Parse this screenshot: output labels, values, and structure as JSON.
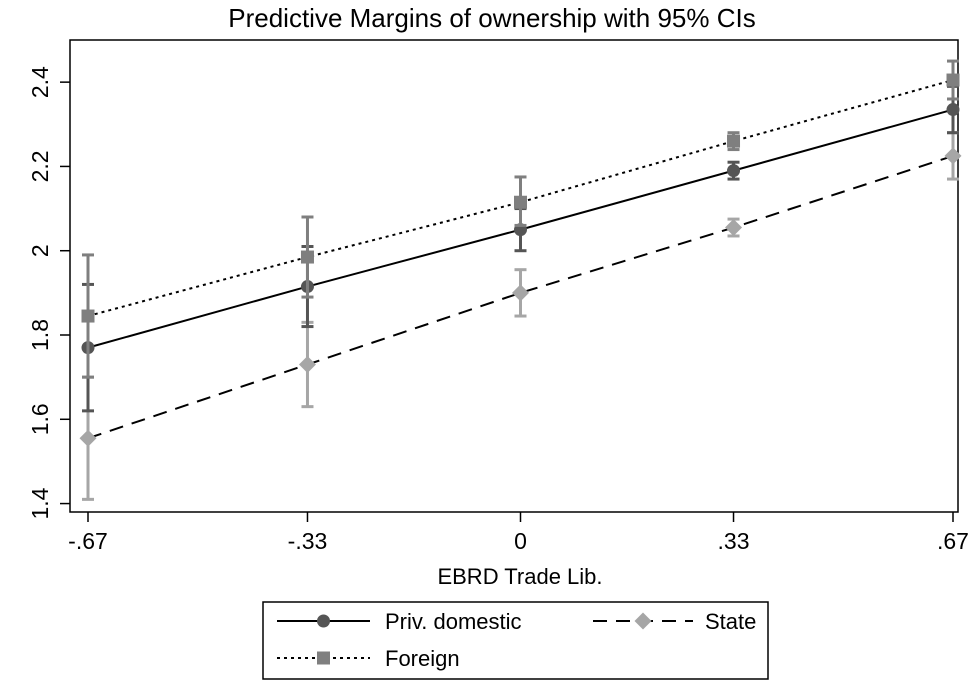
{
  "chart_data": {
    "type": "line",
    "title": "Predictive Margins of ownership with 95% CIs",
    "xlabel": "EBRD Trade Lib.",
    "ylabel": "",
    "x": [
      -0.67,
      -0.33,
      0,
      0.33,
      0.67
    ],
    "x_tick_labels": [
      "-.67",
      "-.33",
      "0",
      ".33",
      ".67"
    ],
    "y_ticks": [
      1.4,
      1.6,
      1.8,
      2,
      2.2,
      2.4
    ],
    "y_tick_labels": [
      "1.4",
      "1.6",
      "1.8",
      "2",
      "2.2",
      "2.4"
    ],
    "xlim": [
      -0.67,
      0.67
    ],
    "ylim": [
      1.38,
      2.5
    ],
    "grid": false,
    "legend_position": "bottom",
    "series": [
      {
        "name": "Priv. domestic",
        "line_style": "solid",
        "marker": "circle",
        "color": "#555555",
        "line_color": "#000000",
        "values": [
          1.77,
          1.915,
          2.05,
          2.19,
          2.335
        ],
        "ci_low": [
          1.62,
          1.82,
          2.0,
          2.17,
          2.28
        ],
        "ci_high": [
          1.92,
          2.01,
          2.1,
          2.21,
          2.39
        ]
      },
      {
        "name": "Foreign",
        "line_style": "dotted",
        "marker": "square",
        "color": "#7f7f7f",
        "line_color": "#000000",
        "values": [
          1.845,
          1.985,
          2.115,
          2.26,
          2.405
        ],
        "ci_low": [
          1.7,
          1.89,
          2.06,
          2.24,
          2.36
        ],
        "ci_high": [
          1.99,
          2.08,
          2.175,
          2.28,
          2.45
        ]
      },
      {
        "name": "State",
        "line_style": "dashed",
        "marker": "diamond",
        "color": "#a6a6a6",
        "line_color": "#000000",
        "values": [
          1.555,
          1.73,
          1.9,
          2.055,
          2.225
        ],
        "ci_low": [
          1.41,
          1.63,
          1.845,
          2.035,
          2.17
        ],
        "ci_high": [
          1.7,
          1.83,
          1.955,
          2.075,
          2.28
        ]
      }
    ]
  }
}
